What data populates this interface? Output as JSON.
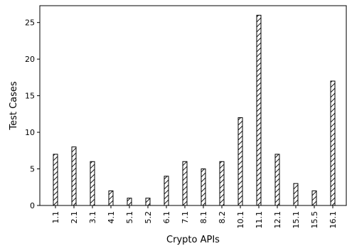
{
  "chart_data": {
    "type": "bar",
    "categories": [
      "1.1",
      "2.1",
      "3.1",
      "4.1",
      "5.1",
      "5.2",
      "6.1",
      "7.1",
      "8.1",
      "8.2",
      "10.1",
      "11.1",
      "12.1",
      "15.1",
      "15.5",
      "16.1"
    ],
    "values": [
      7,
      8,
      6,
      2,
      1,
      1,
      4,
      6,
      5,
      6,
      12,
      26,
      7,
      3,
      2,
      17
    ],
    "title": "",
    "xlabel": "Crypto APIs",
    "ylabel": "Test Cases",
    "ylim": [
      0,
      27.3
    ],
    "yticks": [
      0,
      5,
      10,
      15,
      20,
      25
    ],
    "grid": false,
    "bar_fill": "#ffffff",
    "bar_edge": "#000000",
    "hatch": "diagonal"
  }
}
